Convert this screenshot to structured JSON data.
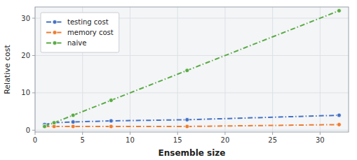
{
  "chart_data": {
    "type": "line",
    "xlabel": "Ensemble size",
    "ylabel": "Relative cost",
    "x": [
      1,
      2,
      4,
      8,
      16,
      32
    ],
    "series": [
      {
        "name": "testing cost",
        "color": "#4472c4",
        "values": [
          1.5,
          2.0,
          2.2,
          2.5,
          2.8,
          4.0
        ]
      },
      {
        "name": "memory cost",
        "color": "#ed7d31",
        "values": [
          1.0,
          1.0,
          1.0,
          1.0,
          1.0,
          1.5
        ]
      },
      {
        "name": "naive",
        "color": "#5aab46",
        "values": [
          1,
          2,
          4,
          8,
          16,
          32
        ]
      }
    ],
    "xlim": [
      0,
      33
    ],
    "ylim": [
      -0.5,
      33
    ],
    "xticks": [
      0,
      5,
      10,
      15,
      20,
      25,
      30
    ],
    "yticks": [
      0,
      10,
      20,
      30
    ],
    "grid": true,
    "legend": "upper left",
    "marker": "circle",
    "line_style": "dashdot"
  }
}
